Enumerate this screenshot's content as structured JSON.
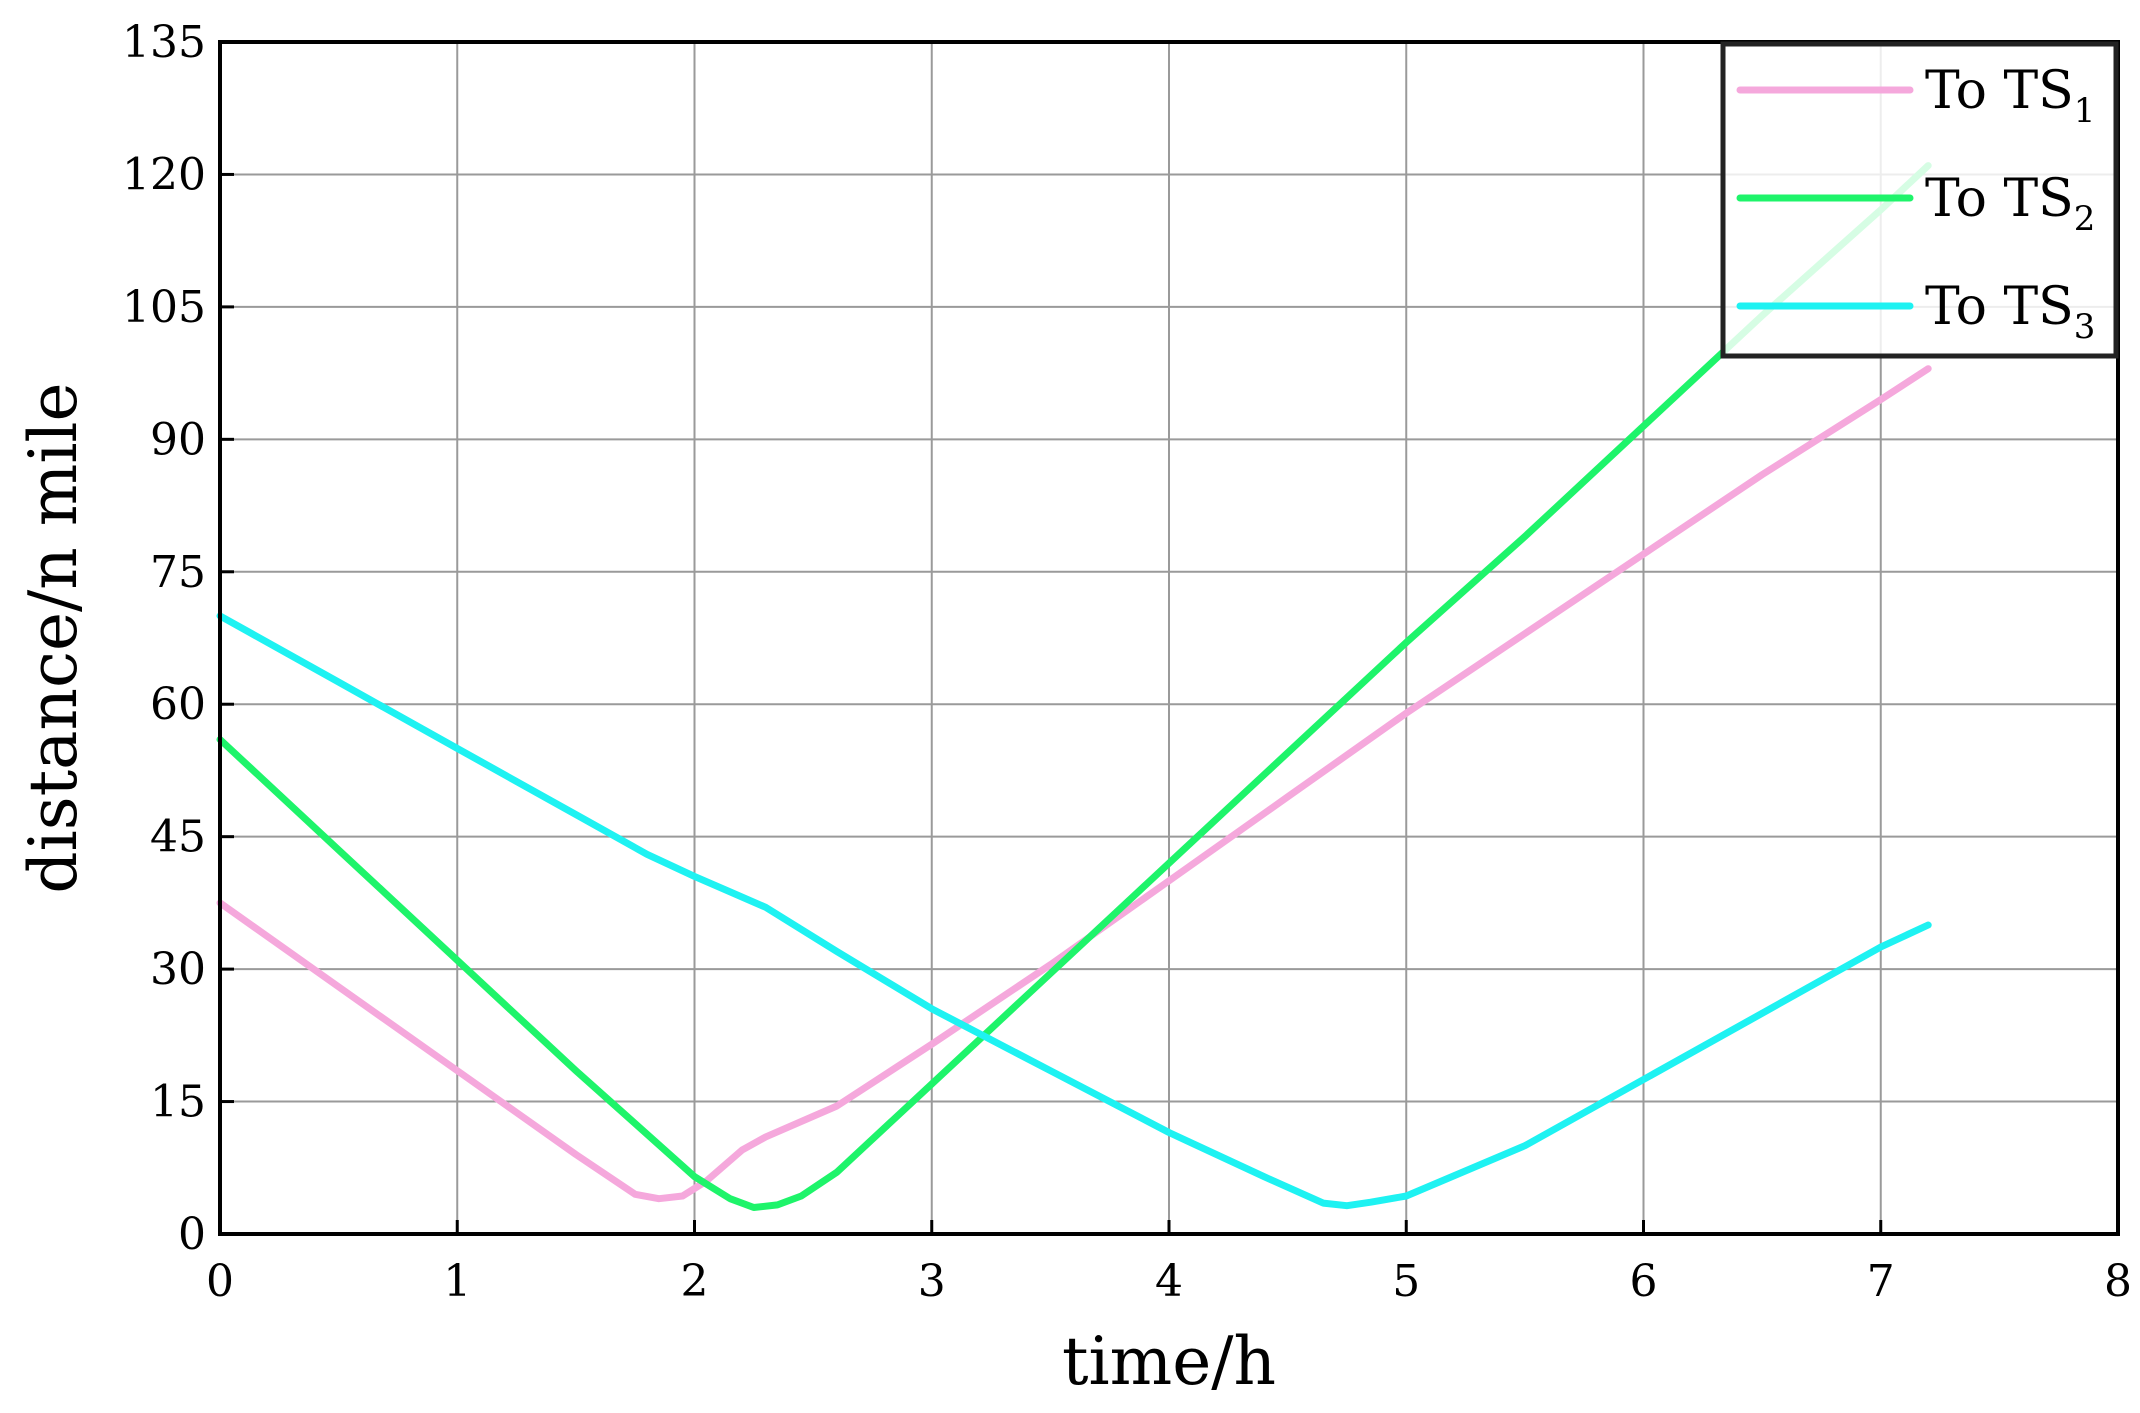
{
  "chart_data": {
    "type": "line",
    "xlabel": "time/h",
    "ylabel": "distance/n mile",
    "xlim": [
      0,
      8
    ],
    "ylim": [
      0,
      135
    ],
    "xticks": [
      0,
      1,
      2,
      3,
      4,
      5,
      6,
      7,
      8
    ],
    "yticks": [
      0,
      15,
      30,
      45,
      60,
      75,
      90,
      105,
      120,
      135
    ],
    "grid": true,
    "legend_position": "top-right",
    "series": [
      {
        "name": "To TS",
        "subscript": "1",
        "color": "#f5a8dc",
        "x": [
          0,
          0.5,
          1.0,
          1.5,
          1.75,
          1.85,
          1.95,
          2.05,
          2.2,
          2.3,
          2.6,
          3.0,
          3.5,
          4.0,
          4.5,
          5.0,
          5.5,
          6.0,
          6.5,
          7.0,
          7.2
        ],
        "y": [
          37.5,
          28,
          18.5,
          9,
          4.5,
          4,
          4.3,
          6,
          9.5,
          11,
          14.5,
          21.5,
          30.5,
          40,
          49.5,
          59,
          68,
          77,
          86,
          94.5,
          98
        ]
      },
      {
        "name": "To TS",
        "subscript": "2",
        "color": "#1ef46a",
        "x": [
          0,
          0.5,
          1.0,
          1.5,
          2.0,
          2.15,
          2.25,
          2.35,
          2.45,
          2.6,
          3.0,
          3.5,
          4.0,
          4.5,
          5.0,
          5.5,
          6.0,
          6.5,
          7.0,
          7.2
        ],
        "y": [
          56,
          43.5,
          31,
          18.5,
          6.5,
          4,
          3,
          3.3,
          4.3,
          7,
          17,
          29.5,
          42,
          54.5,
          67,
          79,
          91.5,
          104,
          116,
          121
        ]
      },
      {
        "name": "To TS",
        "subscript": "3",
        "color": "#1ef2f2",
        "x": [
          0,
          0.5,
          1.0,
          1.5,
          1.8,
          2.0,
          2.3,
          2.6,
          3.0,
          3.5,
          4.0,
          4.4,
          4.65,
          4.75,
          4.85,
          5.0,
          5.5,
          6.0,
          6.5,
          7.0,
          7.2
        ],
        "y": [
          70,
          62.5,
          55,
          47.5,
          43,
          40.5,
          37,
          32,
          25.5,
          18.5,
          11.5,
          6.5,
          3.5,
          3.2,
          3.6,
          4.3,
          10,
          17.5,
          25,
          32.5,
          35
        ]
      }
    ]
  }
}
